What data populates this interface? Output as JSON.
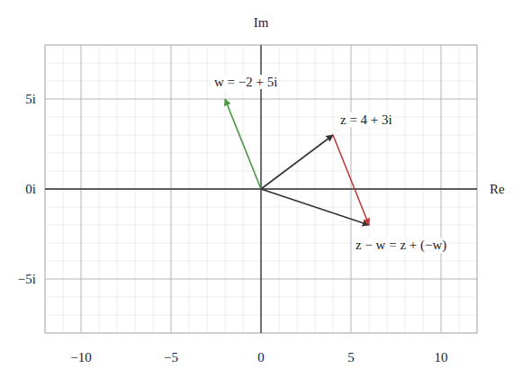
{
  "chart_data": {
    "type": "vector",
    "x_label": "Re",
    "y_label": "Im",
    "xlim": [
      -12,
      12
    ],
    "ylim": [
      -8,
      8
    ],
    "xticks": [
      {
        "value": -10,
        "label": "−10"
      },
      {
        "value": -5,
        "label": "−5"
      },
      0,
      5,
      10
    ],
    "yticks": [
      {
        "value": -5,
        "label": "−5i"
      },
      {
        "value": 0,
        "label": "0i"
      },
      {
        "value": 5,
        "label": "5i"
      }
    ],
    "grid": true,
    "series": [
      {
        "name": "w = −2 + 5i",
        "color": "#4a9a3f",
        "x": [
          0,
          -2
        ],
        "values": [
          0,
          5
        ]
      },
      {
        "name": "z = 4 + 3i",
        "color": "#333333",
        "x": [
          0,
          4
        ],
        "values": [
          0,
          3
        ]
      },
      {
        "name": "z − w = z + (−w)",
        "color": "#333333",
        "x": [
          0,
          6
        ],
        "values": [
          0,
          -2
        ]
      },
      {
        "color": "#c0393b",
        "x": [
          4,
          6
        ],
        "values": [
          3,
          -2
        ]
      }
    ]
  }
}
